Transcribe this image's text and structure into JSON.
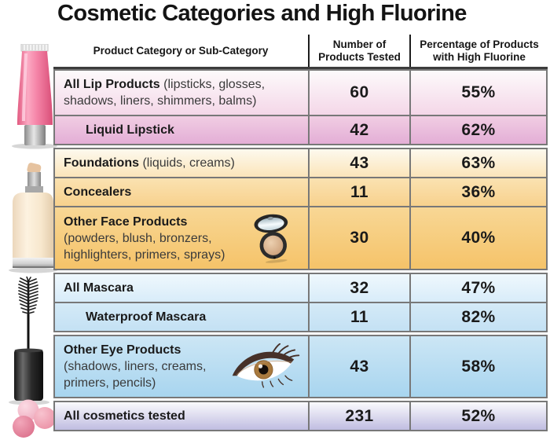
{
  "title": "Cosmetic Categories and High Fluorine",
  "illustrations": [
    "lip-gloss-tube-icon",
    "foundation-bottle-icon",
    "mascara-wand-icon",
    "pink-pearls-icon"
  ],
  "colors": {
    "grid_line": "#787878",
    "header_rule": "#3c3c3c",
    "text": "#1a1a1a"
  },
  "table": {
    "header": {
      "category": "Product Category or Sub-Category",
      "tested": "Number of Products Tested",
      "pct": "Percentage of Products with High Fluorine"
    },
    "rows": [
      {
        "group": "lip",
        "category": "All Lip Products",
        "detail": "(lipsticks, glosses, shadows, liners, shimmers, balms)",
        "tested": "60",
        "pct": "55%",
        "bg": [
          "#fdfafb",
          "#f4d7e8"
        ]
      },
      {
        "group": "lip",
        "indent": true,
        "category": "Liquid Lipstick",
        "detail": "",
        "tested": "42",
        "pct": "62%",
        "bg": [
          "#f1cde3",
          "#e3aed6"
        ]
      },
      {
        "group": "face",
        "category": "Foundations",
        "detail": "(liquids, creams)",
        "tested": "43",
        "pct": "63%",
        "bg": [
          "#fdf9ee",
          "#fbe5ba"
        ]
      },
      {
        "group": "face",
        "category": "Concealers",
        "detail": "",
        "tested": "11",
        "pct": "36%",
        "bg": [
          "#fae2b1",
          "#f8d18d"
        ]
      },
      {
        "group": "face",
        "category": "Other Face Products",
        "detail": "(powders, blush, bronzers, highlighters, primers, sprays)",
        "tested": "30",
        "pct": "40%",
        "bg": [
          "#f8d795",
          "#f5c369"
        ],
        "icon": "compact-powder-icon"
      },
      {
        "group": "mascara",
        "category": "All Mascara",
        "detail": "",
        "tested": "32",
        "pct": "47%",
        "bg": [
          "#eff8fd",
          "#d8ecf9"
        ]
      },
      {
        "group": "mascara",
        "indent": true,
        "category": "Waterproof Mascara",
        "detail": "",
        "tested": "11",
        "pct": "82%",
        "bg": [
          "#d4eaf7",
          "#c4e1f4"
        ]
      },
      {
        "group": "eye",
        "category": "Other Eye Products",
        "detail": "(shadows, liners, creams, primers, pencils)",
        "tested": "43",
        "pct": "58%",
        "bg": [
          "#cce6f5",
          "#a8d5ef"
        ],
        "icon": "eye-icon"
      },
      {
        "group": "total",
        "category": "All cosmetics tested",
        "detail": "",
        "tested": "231",
        "pct": "52%",
        "bg": [
          "#fafafd",
          "#c0bde1"
        ]
      }
    ]
  },
  "chart_data": {
    "type": "table",
    "title": "Cosmetic Categories and High Fluorine",
    "columns": [
      "Product Category or Sub-Category",
      "Number of Products Tested",
      "Percentage of Products with High Fluorine"
    ],
    "categories": [
      "All Lip Products (lipsticks, glosses, shadows, liners, shimmers, balms)",
      "Liquid Lipstick",
      "Foundations (liquids, creams)",
      "Concealers",
      "Other Face Products (powders, blush, bronzers, highlighters, primers, sprays)",
      "All Mascara",
      "Waterproof Mascara",
      "Other Eye Products (shadows, liners, creams, primers, pencils)",
      "All cosmetics tested"
    ],
    "series": [
      {
        "name": "Number of Products Tested",
        "values": [
          60,
          42,
          43,
          11,
          30,
          32,
          11,
          43,
          231
        ]
      },
      {
        "name": "Percentage of Products with High Fluorine",
        "values": [
          55,
          62,
          63,
          36,
          40,
          47,
          82,
          58,
          52
        ]
      }
    ]
  }
}
